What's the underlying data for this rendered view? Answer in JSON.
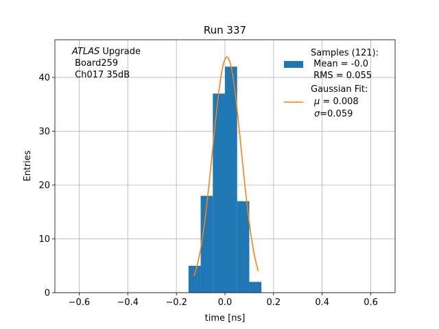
{
  "chart_data": {
    "type": "bar",
    "title": "Run 337",
    "xlabel": "time [ns]",
    "ylabel": "Entries",
    "xlim": [
      -0.7,
      0.7
    ],
    "ylim": [
      0,
      47
    ],
    "grid": true,
    "x_ticks": [
      -0.6,
      -0.4,
      -0.2,
      0.0,
      0.2,
      0.4,
      0.6
    ],
    "x_tick_labels": [
      "−0.6",
      "−0.4",
      "−0.2",
      "0.0",
      "0.2",
      "0.4",
      "0.6"
    ],
    "y_ticks": [
      0,
      10,
      20,
      30,
      40
    ],
    "y_tick_labels": [
      "0",
      "10",
      "20",
      "30",
      "40"
    ],
    "histogram": {
      "bin_edges": [
        -0.15,
        -0.1,
        -0.05,
        0.0,
        0.05,
        0.1,
        0.15
      ],
      "counts": [
        5,
        18,
        37,
        42,
        17,
        2
      ],
      "color": "#1f77b4"
    },
    "gaussian_fit": {
      "amplitude": 43.8,
      "mu": 0.008,
      "sigma": 0.059,
      "x_range": [
        -0.128,
        0.137
      ],
      "color": "#ff7f0e"
    },
    "annotation": {
      "line1_italic": "ATLAS",
      "line1_rest": " Upgrade",
      "line2": " Board259",
      "line3": " Ch017 35dB"
    },
    "legend": {
      "placement": "top-right",
      "samples": {
        "line1": "Samples (121):",
        "line2": " Mean = -0.0",
        "line3": " RMS = 0.055"
      },
      "fit": {
        "line1": "Gaussian Fit:",
        "mu_symbol": "μ",
        "mu_text": " = 0.008",
        "sigma_symbol": "σ",
        "sigma_text": "=0.059"
      }
    }
  }
}
